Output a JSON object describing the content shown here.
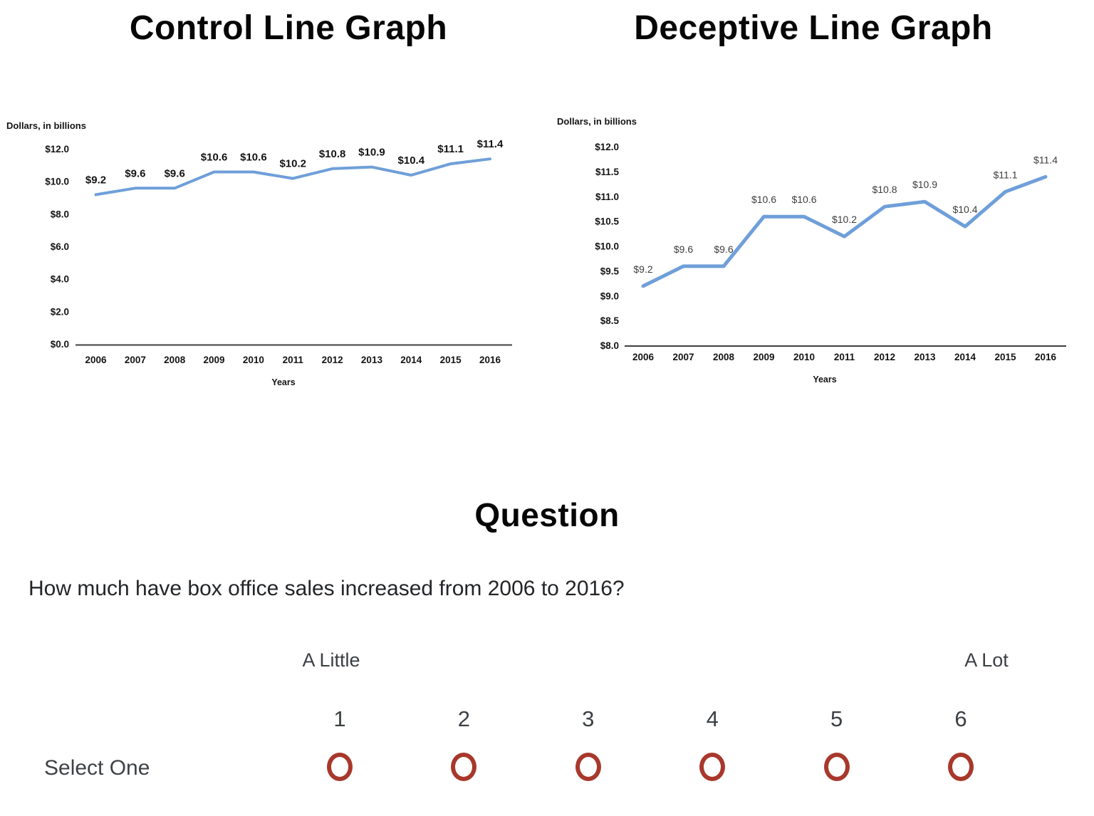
{
  "chart_data": [
    {
      "type": "line",
      "title": "Control Line Graph",
      "ylabel": "Dollars, in billions",
      "xlabel": "Years",
      "categories": [
        "2006",
        "2007",
        "2008",
        "2009",
        "2010",
        "2011",
        "2012",
        "2013",
        "2014",
        "2015",
        "2016"
      ],
      "values": [
        9.2,
        9.6,
        9.6,
        10.6,
        10.6,
        10.2,
        10.8,
        10.9,
        10.4,
        11.1,
        11.4
      ],
      "data_labels": [
        "$9.2",
        "$9.6",
        "$9.6",
        "$10.6",
        "$10.6",
        "$10.2",
        "$10.8",
        "$10.9",
        "$10.4",
        "$11.1",
        "$11.4"
      ],
      "y_ticks": [
        {
          "label": "$12.0",
          "value": 12
        },
        {
          "label": "$10.0",
          "value": 10
        },
        {
          "label": "$8.0",
          "value": 8
        },
        {
          "label": "$6.0",
          "value": 6
        },
        {
          "label": "$4.0",
          "value": 4
        },
        {
          "label": "$2.0",
          "value": 2
        },
        {
          "label": "$0.0",
          "value": 0
        }
      ],
      "ylim": [
        0,
        12
      ],
      "grid": false,
      "legend": "none",
      "line_color": "#6F9FD9"
    },
    {
      "type": "line",
      "title": "Deceptive Line Graph",
      "ylabel": "Dollars, in billions",
      "xlabel": "Years",
      "categories": [
        "2006",
        "2007",
        "2008",
        "2009",
        "2010",
        "2011",
        "2012",
        "2013",
        "2014",
        "2015",
        "2016"
      ],
      "values": [
        9.2,
        9.6,
        9.6,
        10.6,
        10.6,
        10.2,
        10.8,
        10.9,
        10.4,
        11.1,
        11.4
      ],
      "data_labels": [
        "$9.2",
        "$9.6",
        "$9.6",
        "$10.6",
        "$10.6",
        "$10.2",
        "$10.8",
        "$10.9",
        "$10.4",
        "$11.1",
        "$11.4"
      ],
      "y_ticks": [
        {
          "label": "$12.0",
          "value": 12
        },
        {
          "label": "$11.5",
          "value": 11.5
        },
        {
          "label": "$11.0",
          "value": 11
        },
        {
          "label": "$10.5",
          "value": 10.5
        },
        {
          "label": "$10.0",
          "value": 10
        },
        {
          "label": "$9.5",
          "value": 9.5
        },
        {
          "label": "$9.0",
          "value": 9
        },
        {
          "label": "$8.5",
          "value": 8.5
        },
        {
          "label": "$8.0",
          "value": 8
        }
      ],
      "ylim": [
        8,
        12
      ],
      "grid": false,
      "legend": "none",
      "line_color": "#6F9FD9"
    }
  ],
  "question": {
    "heading": "Question",
    "text": "How much have box office sales increased from 2006 to 2016?"
  },
  "scale": {
    "anchor_low": "A Little",
    "anchor_high": "A Lot",
    "select_prompt": "Select One",
    "options": [
      "1",
      "2",
      "3",
      "4",
      "5",
      "6"
    ],
    "selected": null,
    "radio_color": "#A8382B"
  }
}
